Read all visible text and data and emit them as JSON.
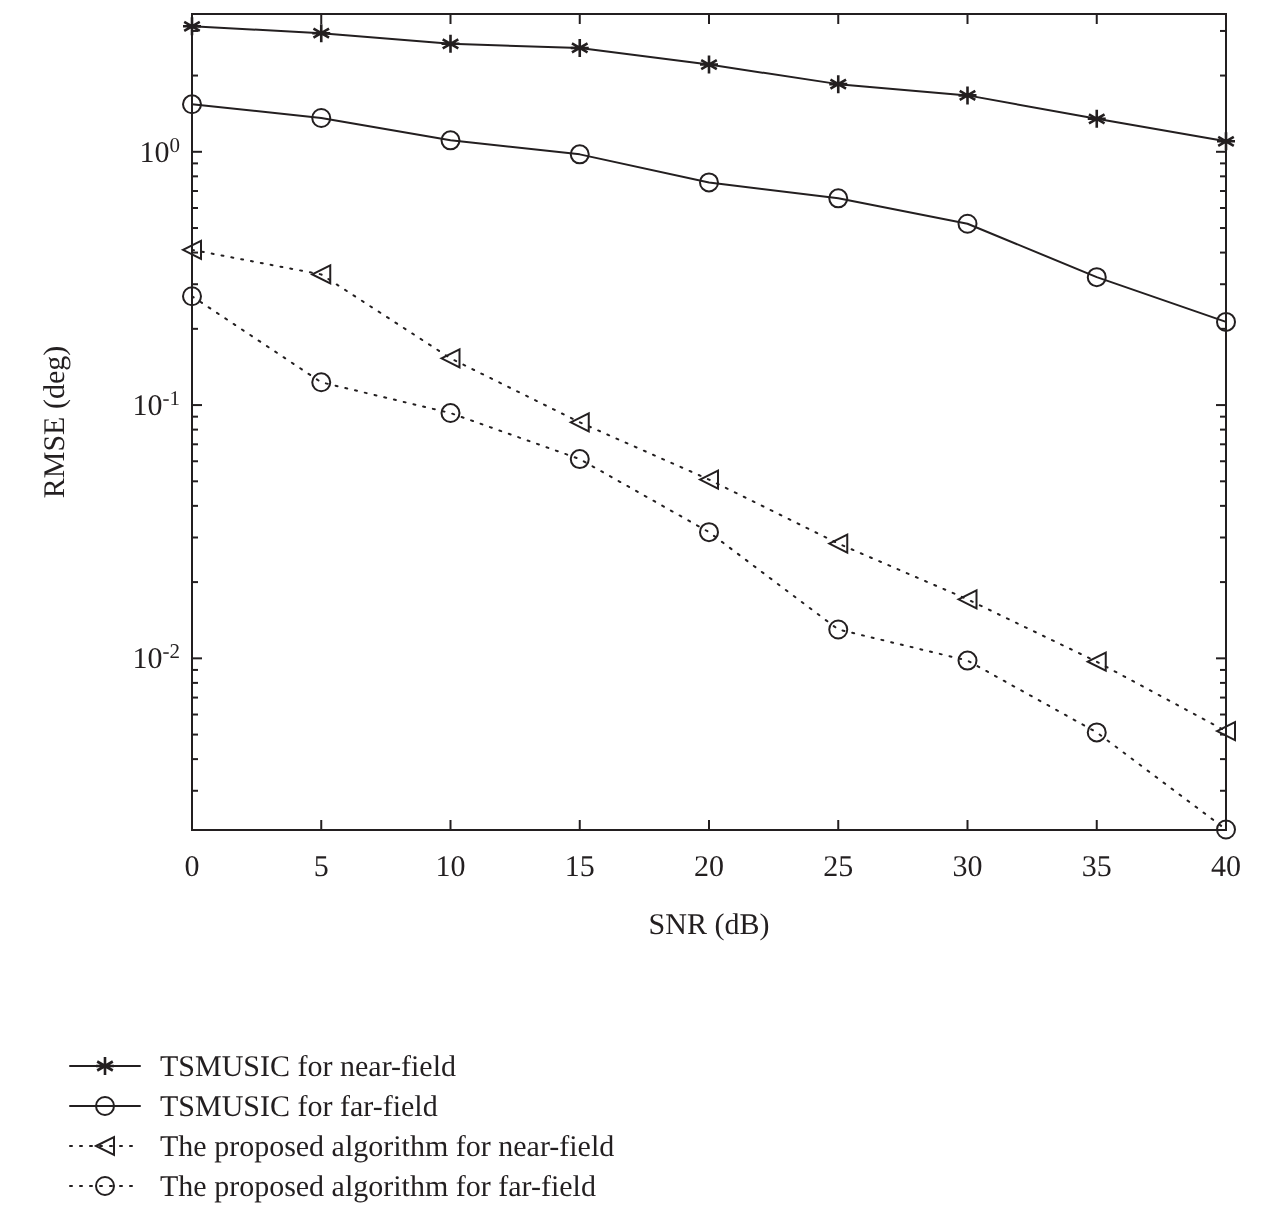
{
  "chart_data": {
    "type": "line",
    "xlabel": "SNR (dB)",
    "ylabel": "RMSE (deg)",
    "log": "y",
    "legend": "bottom",
    "grid": false,
    "x": [
      0,
      5,
      10,
      15,
      20,
      25,
      30,
      35,
      40
    ],
    "xlim": [
      0,
      40
    ],
    "xticks": [
      0,
      5,
      10,
      15,
      20,
      25,
      30,
      35,
      40
    ],
    "ylim": [
      0.0021,
      3.5
    ],
    "yticks": [
      {
        "value": 0.003,
        "label": null
      },
      {
        "value": 0.004,
        "label": null
      },
      {
        "value": 0.005,
        "label": null
      },
      {
        "value": 0.006,
        "label": null
      },
      {
        "value": 0.007,
        "label": null
      },
      {
        "value": 0.008,
        "label": null
      },
      {
        "value": 0.009,
        "label": null
      },
      {
        "value": 0.01,
        "label": "10$^{-2}$"
      },
      {
        "value": 0.02,
        "label": null
      },
      {
        "value": 0.03,
        "label": null
      },
      {
        "value": 0.04,
        "label": null
      },
      {
        "value": 0.05,
        "label": null
      },
      {
        "value": 0.06,
        "label": null
      },
      {
        "value": 0.07,
        "label": null
      },
      {
        "value": 0.08,
        "label": null
      },
      {
        "value": 0.09,
        "label": null
      },
      {
        "value": 0.1,
        "label": "10$^{-1}$"
      },
      {
        "value": 0.2,
        "label": null
      },
      {
        "value": 0.3,
        "label": null
      },
      {
        "value": 0.4,
        "label": null
      },
      {
        "value": 0.5,
        "label": null
      },
      {
        "value": 0.6,
        "label": null
      },
      {
        "value": 0.7,
        "label": null
      },
      {
        "value": 0.8,
        "label": null
      },
      {
        "value": 0.9,
        "label": null
      },
      {
        "value": 1,
        "label": "10$^{0}$"
      },
      {
        "value": 2,
        "label": null
      },
      {
        "value": 3,
        "label": null
      }
    ],
    "series": [
      {
        "name": "TSMUSIC for near-field",
        "color": "#231f20",
        "marker": "cross",
        "line_style": "solid",
        "values": [
          3.13,
          2.94,
          2.67,
          2.57,
          2.21,
          1.85,
          1.67,
          1.35,
          1.1
        ]
      },
      {
        "name": "TSMUSIC for far-field",
        "color": "#231f20",
        "marker": "circle",
        "line_style": "solid",
        "values": [
          1.54,
          1.36,
          1.11,
          0.977,
          0.757,
          0.655,
          0.52,
          0.32,
          0.213
        ]
      },
      {
        "name": "The proposed algorithm for near-field",
        "color": "#231f20",
        "marker": "triangle",
        "line_style": "dotted",
        "values": [
          0.41,
          0.328,
          0.153,
          0.0855,
          0.0508,
          0.0284,
          0.0171,
          0.0097,
          0.00516
        ]
      },
      {
        "name": "The proposed algorithm for far-field",
        "color": "#231f20",
        "marker": "circle",
        "line_style": "dotted",
        "values": [
          0.269,
          0.123,
          0.093,
          0.0612,
          0.0315,
          0.013,
          0.0098,
          0.0051,
          0.00211
        ]
      }
    ]
  }
}
